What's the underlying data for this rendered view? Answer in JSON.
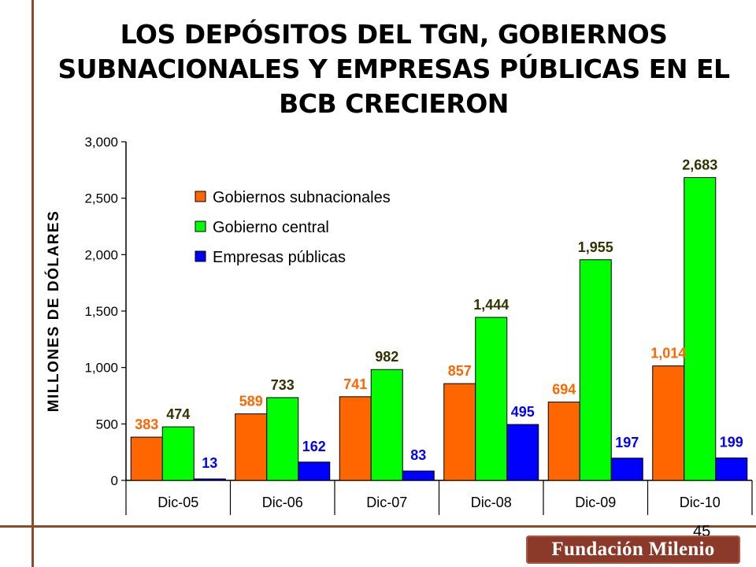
{
  "title_lines": [
    "LOS DEPÓSITOS DEL TGN, GOBIERNOS",
    "SUBNACIONALES Y EMPRESAS PÚBLICAS EN EL",
    "BCB CRECIERON"
  ],
  "page_number": "45",
  "logo_text": "Fundación Milenio",
  "chart_data": {
    "type": "bar",
    "categories": [
      "Dic-05",
      "Dic-06",
      "Dic-07",
      "Dic-08",
      "Dic-09",
      "Dic-10"
    ],
    "ylabel": "MILLONES DE DÓLARES",
    "ylim": [
      0,
      3000
    ],
    "yticks": [
      0,
      500,
      1000,
      1500,
      2000,
      2500,
      3000
    ],
    "ytick_labels": [
      "0",
      "500",
      "1,000",
      "1,500",
      "2,000",
      "2,500",
      "3,000"
    ],
    "grid": false,
    "legend_position": "top-left",
    "series": [
      {
        "name": "Gobiernos subnacionales",
        "color": "#ff6600",
        "label_color": "#ff6600",
        "values": [
          383,
          589,
          741,
          857,
          694,
          1014
        ],
        "labels": [
          "383",
          "589",
          "741",
          "857",
          "694",
          "1,014"
        ]
      },
      {
        "name": "Gobierno central",
        "color": "#00ff00",
        "label_color": "#333300",
        "values": [
          474,
          733,
          982,
          1444,
          1955,
          2683
        ],
        "labels": [
          "474",
          "733",
          "982",
          "1,444",
          "1,955",
          "2,683"
        ]
      },
      {
        "name": "Empresas públicas",
        "color": "#0000ff",
        "label_color": "#0000ff",
        "values": [
          13,
          162,
          83,
          495,
          197,
          199
        ],
        "labels": [
          "13",
          "162",
          "83",
          "495",
          "197",
          "199"
        ]
      }
    ]
  }
}
